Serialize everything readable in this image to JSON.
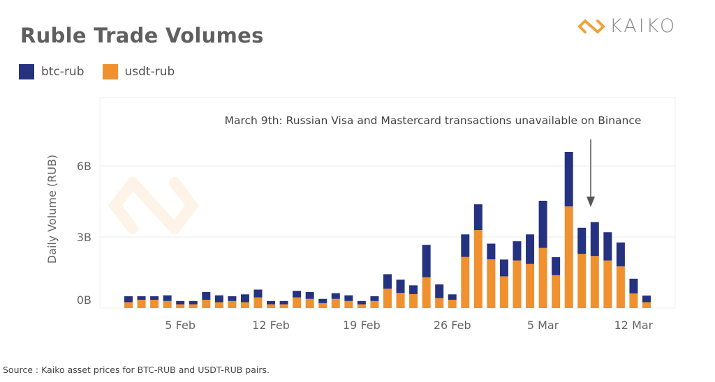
{
  "header": {
    "title": "Ruble Trade Volumes",
    "logo_text": "KAIKO"
  },
  "colors": {
    "btc": "#25327f",
    "usdt": "#f0912f",
    "logo_accent": "#f0a33a"
  },
  "footer": {
    "source": "Source : Kaiko asset prices  for BTC-RUB and USDT-RUB pairs."
  },
  "chart_data": {
    "type": "bar",
    "stacked": true,
    "title": "Ruble Trade Volumes",
    "ylabel": "Daily Volume (RUB)",
    "xlabel": "",
    "ylim": [
      0,
      7.4
    ],
    "yticks": [
      {
        "value": 0,
        "label": "0B"
      },
      {
        "value": 3,
        "label": "3B"
      },
      {
        "value": 6,
        "label": "6B"
      }
    ],
    "xticks": [
      {
        "index": 4,
        "label": "5 Feb"
      },
      {
        "index": 11,
        "label": "12 Feb"
      },
      {
        "index": 18,
        "label": "19 Feb"
      },
      {
        "index": 25,
        "label": "26 Feb"
      },
      {
        "index": 32,
        "label": "5 Mar"
      },
      {
        "index": 39,
        "label": "12 Mar"
      }
    ],
    "grid": true,
    "legend": "top-left",
    "categories": [
      "2022-02-01",
      "2022-02-02",
      "2022-02-03",
      "2022-02-04",
      "2022-02-05",
      "2022-02-06",
      "2022-02-07",
      "2022-02-08",
      "2022-02-09",
      "2022-02-10",
      "2022-02-11",
      "2022-02-12",
      "2022-02-13",
      "2022-02-14",
      "2022-02-15",
      "2022-02-16",
      "2022-02-17",
      "2022-02-18",
      "2022-02-19",
      "2022-02-20",
      "2022-02-21",
      "2022-02-22",
      "2022-02-23",
      "2022-02-24",
      "2022-02-25",
      "2022-02-26",
      "2022-02-27",
      "2022-02-28",
      "2022-03-01",
      "2022-03-02",
      "2022-03-03",
      "2022-03-04",
      "2022-03-05",
      "2022-03-06",
      "2022-03-07",
      "2022-03-08",
      "2022-03-09",
      "2022-03-10",
      "2022-03-11",
      "2022-03-12",
      "2022-03-13"
    ],
    "series": [
      {
        "name": "usdt-rub",
        "color": "#f0912f",
        "values": [
          0.25,
          0.35,
          0.35,
          0.3,
          0.16,
          0.16,
          0.35,
          0.25,
          0.3,
          0.25,
          0.45,
          0.16,
          0.16,
          0.45,
          0.39,
          0.21,
          0.39,
          0.3,
          0.16,
          0.3,
          0.82,
          0.64,
          0.59,
          1.3,
          0.42,
          0.35,
          2.16,
          3.29,
          2.06,
          1.34,
          2.01,
          1.86,
          2.54,
          1.39,
          4.29,
          2.29,
          2.2,
          2.01,
          1.76,
          0.62,
          0.25
        ]
      },
      {
        "name": "btc-rub",
        "color": "#25327f",
        "values": [
          0.25,
          0.15,
          0.15,
          0.24,
          0.14,
          0.14,
          0.33,
          0.29,
          0.2,
          0.33,
          0.33,
          0.14,
          0.14,
          0.28,
          0.29,
          0.18,
          0.24,
          0.24,
          0.14,
          0.2,
          0.61,
          0.56,
          0.37,
          1.37,
          0.58,
          0.23,
          0.95,
          1.09,
          0.66,
          0.71,
          0.81,
          1.25,
          1.99,
          0.76,
          2.3,
          1.1,
          1.43,
          1.19,
          1.01,
          0.62,
          0.28
        ]
      }
    ],
    "annotations": [
      {
        "label": "March 9th: Russian Visa and Mastercard transactions unavailable on Binance",
        "category": "2022-03-09",
        "arrow": true
      }
    ]
  }
}
